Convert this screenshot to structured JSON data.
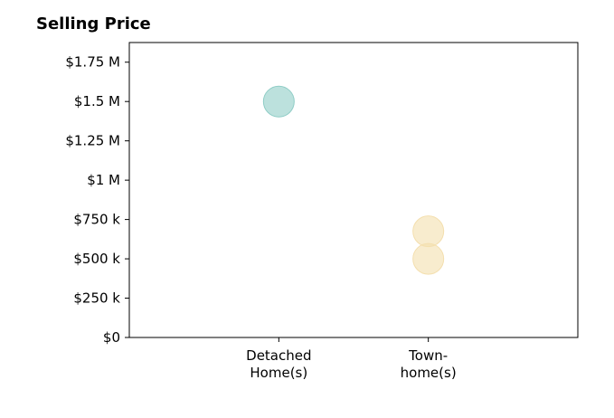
{
  "chart_data": {
    "type": "scatter",
    "title": "Selling Price",
    "xlabel": "",
    "ylabel": "",
    "categories": [
      "Detached\nHome(s)",
      "Town-\nhome(s)"
    ],
    "ylim": [
      0,
      1875000
    ],
    "yticks": [
      0,
      250000,
      500000,
      750000,
      1000000,
      1250000,
      1500000,
      1750000
    ],
    "ytick_labels": [
      "$0",
      "$250 k",
      "$500 k",
      "$750 k",
      "$1 M",
      "$1.25 M",
      "$1.5 M",
      "$1.75 M"
    ],
    "grid": false,
    "series": [
      {
        "category": "Detached\nHome(s)",
        "color": "#8fcdc6",
        "values": [
          1500000
        ]
      },
      {
        "category": "Town-\nhome(s)",
        "color": "#f4dfae",
        "values": [
          675000,
          500000
        ]
      }
    ]
  }
}
